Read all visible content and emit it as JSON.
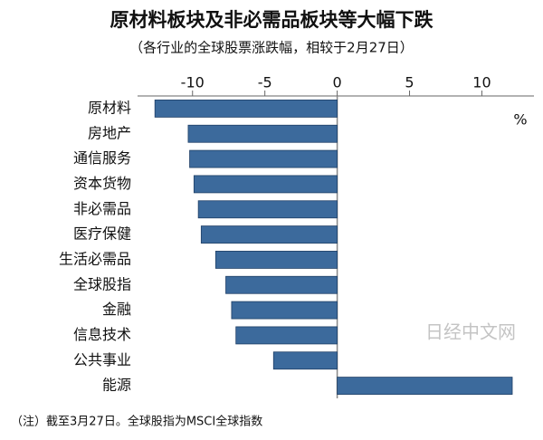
{
  "chart_data": {
    "type": "hbar",
    "title": "原材料板块及非必需品板块等大幅下跌",
    "subtitle": "（各行业的全球股票涨跌幅，相较于2月27日）",
    "unit_label": "%",
    "categories": [
      "原材料",
      "房地产",
      "通信服务",
      "资本货物",
      "非必需品",
      "医疗保健",
      "生活必需品",
      "全球股指",
      "金融",
      "信息技术",
      "公共事业",
      "能源"
    ],
    "values": [
      -12.6,
      -10.3,
      -10.2,
      -9.9,
      -9.6,
      -9.4,
      -8.4,
      -7.7,
      -7.3,
      -7.0,
      -4.4,
      12.1
    ],
    "color": "#3c6a9c",
    "xlim": [
      -13.8,
      13.6
    ],
    "xticks": [
      -10,
      -5,
      0,
      5,
      10
    ],
    "note": "（注）截至3月27日。全球股指为MSCI全球指数",
    "watermark": "日经中文网"
  }
}
